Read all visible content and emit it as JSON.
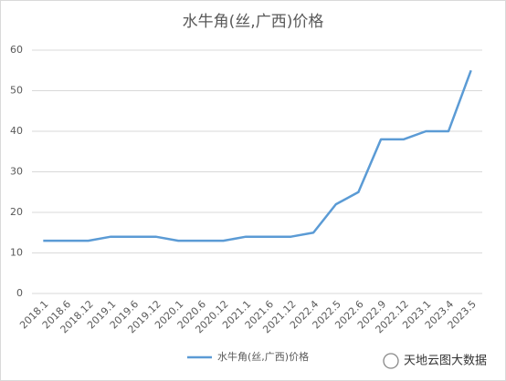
{
  "chart_data": {
    "type": "line",
    "title": "水牛角(丝,广西)价格",
    "categories": [
      "2018.1",
      "2018.6",
      "2018.12",
      "2019.1",
      "2019.6",
      "2019.12",
      "2020.1",
      "2020.6",
      "2020.12",
      "2021.1",
      "2021.6",
      "2021.12",
      "2022.4",
      "2022.5",
      "2022.6",
      "2022.9",
      "2022.12",
      "2023.1",
      "2023.4",
      "2023.5"
    ],
    "series": [
      {
        "name": "水牛角(丝,广西)价格",
        "color": "#5b9bd5",
        "values": [
          13,
          13,
          13,
          14,
          14,
          14,
          13,
          13,
          13,
          14,
          14,
          14,
          15,
          22,
          25,
          38,
          38,
          40,
          40,
          55
        ]
      }
    ],
    "ylim": [
      0,
      60
    ],
    "yticks": [
      0,
      10,
      20,
      30,
      40,
      50,
      60
    ],
    "grid": true,
    "legend": "bottom",
    "watermark": "天地云图大数据"
  }
}
